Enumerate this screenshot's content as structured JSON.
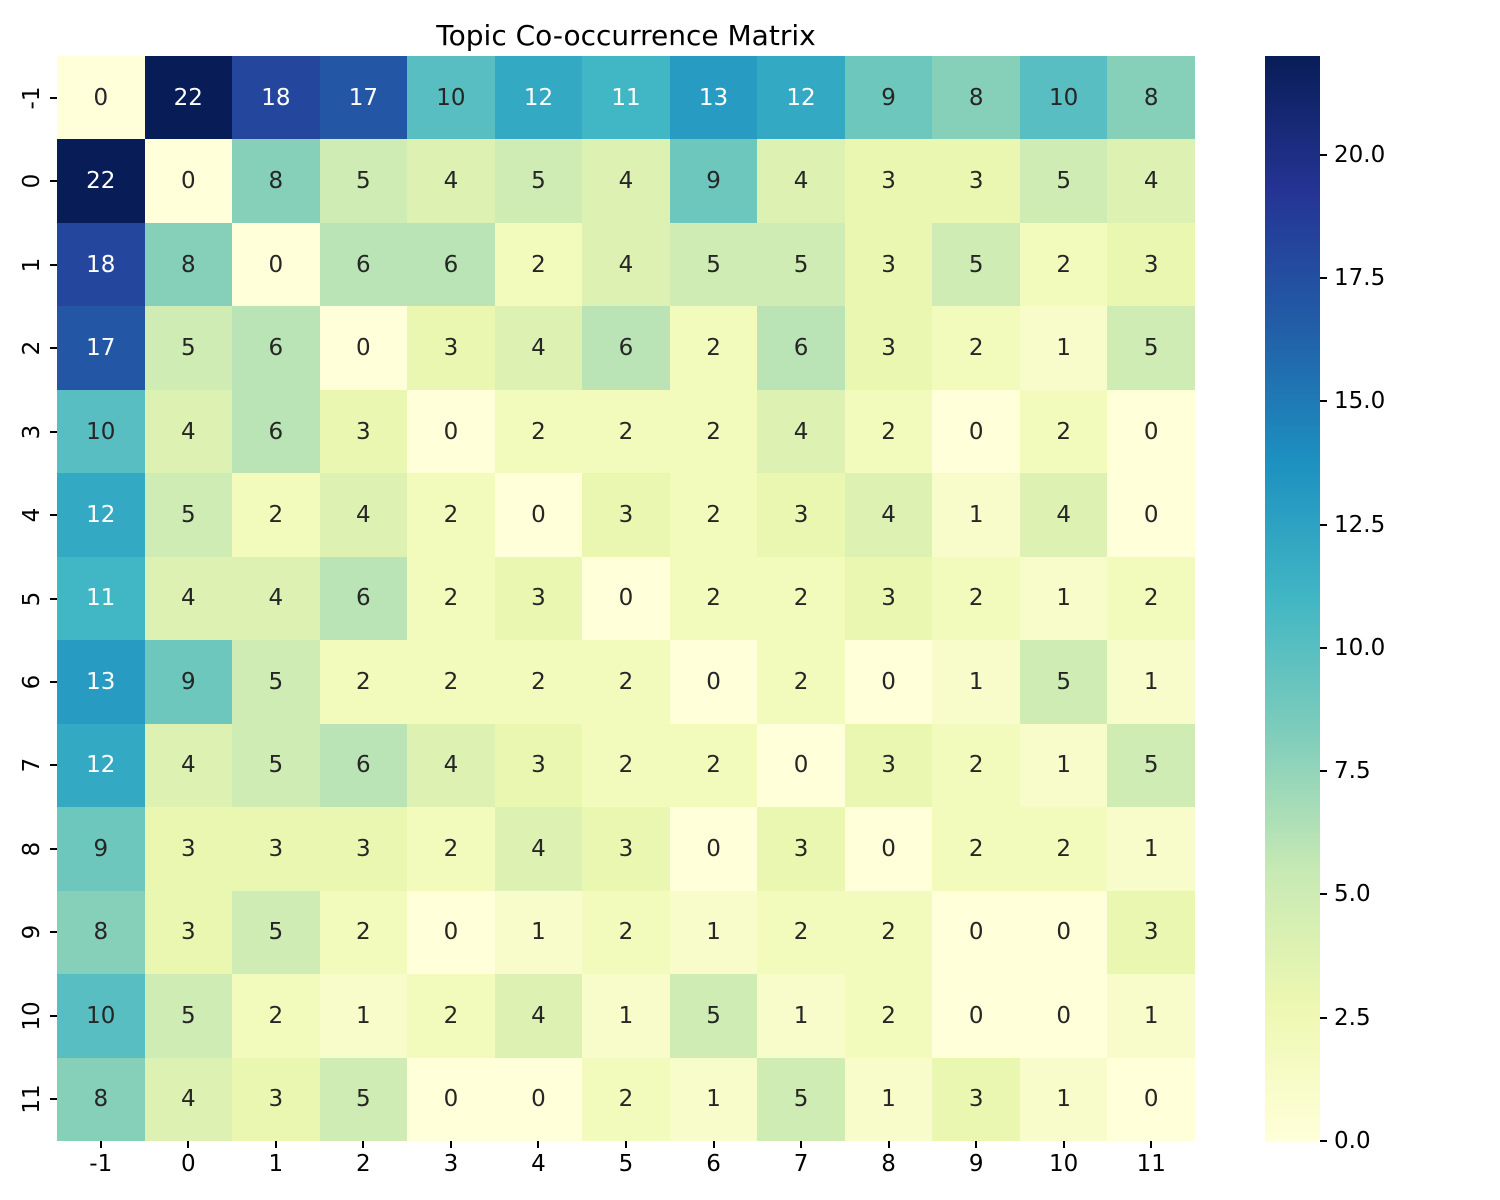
{
  "chart_data": {
    "type": "heatmap",
    "title": "Topic Co-occurrence Matrix",
    "x_labels": [
      "-1",
      "0",
      "1",
      "2",
      "3",
      "4",
      "5",
      "6",
      "7",
      "8",
      "9",
      "10",
      "11"
    ],
    "y_labels": [
      "-1",
      "0",
      "1",
      "2",
      "3",
      "4",
      "5",
      "6",
      "7",
      "8",
      "9",
      "10",
      "11"
    ],
    "matrix": [
      [
        0,
        22,
        18,
        17,
        10,
        12,
        11,
        13,
        12,
        9,
        8,
        10,
        8
      ],
      [
        22,
        0,
        8,
        5,
        4,
        5,
        4,
        9,
        4,
        3,
        3,
        5,
        4
      ],
      [
        18,
        8,
        0,
        6,
        6,
        2,
        4,
        5,
        5,
        3,
        5,
        2,
        3
      ],
      [
        17,
        5,
        6,
        0,
        3,
        4,
        6,
        2,
        6,
        3,
        2,
        1,
        5
      ],
      [
        10,
        4,
        6,
        3,
        0,
        2,
        2,
        2,
        4,
        2,
        0,
        2,
        0
      ],
      [
        12,
        5,
        2,
        4,
        2,
        0,
        3,
        2,
        3,
        4,
        1,
        4,
        0
      ],
      [
        11,
        4,
        4,
        6,
        2,
        3,
        0,
        2,
        2,
        3,
        2,
        1,
        2
      ],
      [
        13,
        9,
        5,
        2,
        2,
        2,
        2,
        0,
        2,
        0,
        1,
        5,
        1
      ],
      [
        12,
        4,
        5,
        6,
        4,
        3,
        2,
        2,
        0,
        3,
        2,
        1,
        5
      ],
      [
        9,
        3,
        3,
        3,
        2,
        4,
        3,
        0,
        3,
        0,
        2,
        2,
        1
      ],
      [
        8,
        3,
        5,
        2,
        0,
        1,
        2,
        1,
        2,
        2,
        0,
        0,
        3
      ],
      [
        10,
        5,
        2,
        1,
        2,
        4,
        1,
        5,
        1,
        2,
        0,
        0,
        1
      ],
      [
        8,
        4,
        3,
        5,
        0,
        0,
        2,
        1,
        5,
        1,
        3,
        1,
        0
      ]
    ],
    "vmin": 0,
    "vmax": 22,
    "grid": false,
    "colormap": {
      "name": "YlGnBu",
      "stops": [
        {
          "pos": 0.0,
          "color": "#ffffd9"
        },
        {
          "pos": 0.125,
          "color": "#edf8b1"
        },
        {
          "pos": 0.25,
          "color": "#c7e9b4"
        },
        {
          "pos": 0.375,
          "color": "#7fcdbb"
        },
        {
          "pos": 0.5,
          "color": "#41b6c4"
        },
        {
          "pos": 0.625,
          "color": "#1d91c0"
        },
        {
          "pos": 0.75,
          "color": "#225ea8"
        },
        {
          "pos": 0.875,
          "color": "#253494"
        },
        {
          "pos": 1.0,
          "color": "#081d58"
        }
      ]
    },
    "annotation_color_dark": "#262626",
    "annotation_color_light": "#ffffff",
    "text_luminance_threshold": 0.408,
    "colorbar": {
      "position": "right",
      "ticks": [
        {
          "value": 0,
          "label": "0.0"
        },
        {
          "value": 2.5,
          "label": "2.5"
        },
        {
          "value": 5,
          "label": "5.0"
        },
        {
          "value": 7.5,
          "label": "7.5"
        },
        {
          "value": 10,
          "label": "10.0"
        },
        {
          "value": 12.5,
          "label": "12.5"
        },
        {
          "value": 15,
          "label": "15.0"
        },
        {
          "value": 17.5,
          "label": "17.5"
        },
        {
          "value": 20,
          "label": "20.0"
        }
      ]
    }
  }
}
